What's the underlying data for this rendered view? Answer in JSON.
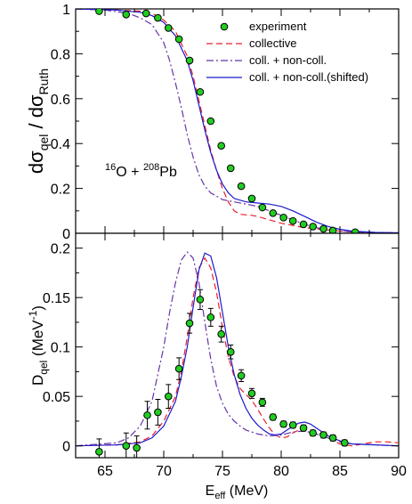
{
  "chart_data": {
    "type": "line",
    "x_axis": {
      "label_main": "E",
      "label_sub": "eff",
      "label_rest": " (MeV)",
      "range": [
        62.5,
        90
      ],
      "ticks": [
        65,
        70,
        75,
        80,
        85,
        90
      ],
      "tick_labels": [
        "65",
        "70",
        "75",
        "80",
        "85",
        "90"
      ]
    },
    "legend": {
      "position": "top-right",
      "entries": [
        {
          "label": "experiment",
          "style": "marker",
          "color": "#22cc22"
        },
        {
          "label": "collective",
          "style": "dashed",
          "color": "#e8202a"
        },
        {
          "label": "coll. + non-coll.",
          "style": "dashdot",
          "color": "#6633aa"
        },
        {
          "label": "coll. + non-coll.(shifted)",
          "style": "solid",
          "color": "#1a1acc"
        }
      ]
    },
    "panels": [
      {
        "id": "top",
        "ylabel": {
          "t1": "dσ",
          "s1": "qel",
          "t2": " / dσ",
          "s2": "Ruth"
        },
        "ylim": [
          0,
          1
        ],
        "yticks": [
          0,
          0.2,
          0.4,
          0.6,
          0.8,
          1
        ],
        "ytick_labels": [
          "0",
          "0.2",
          "0.4",
          "0.6",
          "0.8",
          "1"
        ],
        "annotation": {
          "s1": "16",
          "t1": "O + ",
          "s2": "208",
          "t2": "Pb"
        },
        "experiment": {
          "x": [
            64.5,
            66.8,
            68.5,
            69.5,
            70.4,
            71.3,
            72.2,
            73.1,
            74.0,
            74.9,
            75.7,
            76.6,
            77.5,
            78.4,
            79.3,
            80.2,
            81.0,
            81.9,
            82.7,
            83.6,
            84.4,
            86.3
          ],
          "y": [
            0.99,
            0.975,
            0.98,
            0.96,
            0.915,
            0.865,
            0.77,
            0.63,
            0.5,
            0.39,
            0.29,
            0.21,
            0.155,
            0.115,
            0.09,
            0.07,
            0.055,
            0.04,
            0.03,
            0.02,
            0.012,
            0.005
          ]
        },
        "series": [
          {
            "name": "collective",
            "x": [
              62.5,
              66,
              68,
              69,
              70,
              71,
              72,
              72.5,
              73,
              73.5,
              74,
              74.5,
              75,
              75.5,
              76,
              76.5,
              77,
              77.5,
              78,
              79,
              80,
              81,
              82,
              83,
              84,
              85,
              86,
              88,
              90
            ],
            "y": [
              1,
              0.995,
              0.99,
              0.98,
              0.95,
              0.9,
              0.79,
              0.7,
              0.59,
              0.48,
              0.37,
              0.28,
              0.2,
              0.14,
              0.1,
              0.085,
              0.082,
              0.08,
              0.075,
              0.06,
              0.045,
              0.035,
              0.025,
              0.02,
              0.015,
              0.01,
              0.006,
              0.003,
              0.002
            ]
          },
          {
            "name": "coll. + non-coll.",
            "x": [
              62.5,
              65,
              67,
              68,
              69,
              70,
              70.5,
              71,
              71.5,
              72,
              72.5,
              73,
              73.5,
              74,
              75,
              76,
              77,
              78,
              79,
              80,
              81,
              82,
              83,
              84,
              85,
              86,
              88,
              90
            ],
            "y": [
              1,
              0.995,
              0.98,
              0.96,
              0.93,
              0.85,
              0.77,
              0.67,
              0.56,
              0.44,
              0.34,
              0.26,
              0.21,
              0.18,
              0.15,
              0.14,
              0.13,
              0.12,
              0.1,
              0.08,
              0.06,
              0.04,
              0.025,
              0.015,
              0.01,
              0.006,
              0.003,
              0.002
            ]
          },
          {
            "name": "coll. + non-coll.(shifted)",
            "x": [
              62.5,
              66,
              68,
              69,
              70,
              71,
              72,
              72.5,
              73,
              73.5,
              74,
              74.5,
              75,
              75.5,
              76,
              77,
              78,
              79,
              80,
              81,
              82,
              83,
              84,
              85,
              86,
              88,
              90
            ],
            "y": [
              1,
              0.995,
              0.985,
              0.97,
              0.94,
              0.88,
              0.77,
              0.68,
              0.57,
              0.46,
              0.36,
              0.28,
              0.22,
              0.18,
              0.155,
              0.14,
              0.135,
              0.13,
              0.12,
              0.1,
              0.075,
              0.05,
              0.03,
              0.018,
              0.01,
              0.004,
              0.002
            ]
          }
        ]
      },
      {
        "id": "bottom",
        "ylabel": {
          "t1": "D",
          "s1": "qel",
          "t2": " (MeV",
          "sup": "-1",
          "t3": ")"
        },
        "ylim": [
          -0.012,
          0.215
        ],
        "yticks": [
          0,
          0.05,
          0.1,
          0.15,
          0.2
        ],
        "ytick_labels": [
          "0",
          "0.05",
          "0.1",
          "0.15",
          "0.2"
        ],
        "experiment": {
          "x": [
            64.5,
            66.8,
            67.7,
            68.6,
            69.5,
            70.4,
            71.3,
            72.2,
            73.1,
            74.0,
            74.9,
            75.7,
            76.6,
            77.5,
            78.4,
            79.3,
            80.2,
            81.0,
            81.9,
            82.7,
            83.6,
            84.4,
            85.4
          ],
          "y": [
            -0.006,
            0.0,
            -0.002,
            0.031,
            0.034,
            0.05,
            0.078,
            0.124,
            0.148,
            0.13,
            0.113,
            0.095,
            0.071,
            0.053,
            0.044,
            0.029,
            0.022,
            0.021,
            0.018,
            0.013,
            0.011,
            0.008,
            0.003
          ],
          "err": [
            0.013,
            0.013,
            0.012,
            0.014,
            0.013,
            0.012,
            0.011,
            0.01,
            0.01,
            0.009,
            0.008,
            0.007,
            0.006,
            0.005,
            0.004,
            0.003,
            0.003,
            0.003,
            0.003,
            0.003,
            0.003,
            0.003,
            0.003
          ]
        },
        "series": [
          {
            "name": "collective",
            "x": [
              62.5,
              66,
              68,
              69,
              70,
              71,
              71.5,
              72,
              72.5,
              73,
              73.5,
              74,
              74.5,
              75,
              75.5,
              76,
              76.5,
              77,
              77.5,
              78,
              78.5,
              79,
              79.5,
              80,
              80.5,
              81,
              81.5,
              82,
              83,
              84,
              85,
              86,
              87,
              88,
              89,
              90
            ],
            "y": [
              0,
              0.001,
              0.004,
              0.01,
              0.025,
              0.05,
              0.075,
              0.11,
              0.15,
              0.18,
              0.19,
              0.18,
              0.155,
              0.12,
              0.09,
              0.07,
              0.058,
              0.052,
              0.046,
              0.037,
              0.027,
              0.018,
              0.011,
              0.008,
              0.009,
              0.013,
              0.016,
              0.018,
              0.014,
              0.008,
              0.002,
              0.0,
              0.002,
              0.004,
              0.004,
              0.003
            ]
          },
          {
            "name": "coll. + non-coll.",
            "x": [
              62.5,
              66,
              67,
              68,
              69,
              70,
              70.5,
              71,
              71.5,
              72,
              72.5,
              73,
              73.5,
              74,
              74.5,
              75,
              75.5,
              76,
              76.5,
              77,
              78,
              79,
              80,
              81,
              82,
              83,
              84,
              85,
              86,
              88,
              90
            ],
            "y": [
              0,
              0.003,
              0.008,
              0.02,
              0.045,
              0.1,
              0.135,
              0.165,
              0.188,
              0.196,
              0.19,
              0.165,
              0.125,
              0.088,
              0.06,
              0.043,
              0.032,
              0.025,
              0.02,
              0.016,
              0.012,
              0.01,
              0.011,
              0.014,
              0.015,
              0.012,
              0.008,
              0.004,
              0.002,
              0.001,
              0.0
            ]
          },
          {
            "name": "coll. + non-coll.(shifted)",
            "x": [
              62.5,
              66,
              68,
              69,
              70,
              71,
              71.5,
              72,
              72.5,
              73,
              73.5,
              74,
              74.5,
              75,
              75.5,
              76,
              76.5,
              77,
              77.5,
              78,
              78.5,
              79,
              79.5,
              80,
              80.5,
              81,
              81.5,
              82,
              82.5,
              83,
              84,
              85,
              86,
              88,
              90
            ],
            "y": [
              0,
              0.001,
              0.003,
              0.008,
              0.02,
              0.045,
              0.07,
              0.1,
              0.14,
              0.178,
              0.195,
              0.192,
              0.17,
              0.135,
              0.1,
              0.072,
              0.052,
              0.038,
              0.028,
              0.021,
              0.016,
              0.012,
              0.011,
              0.012,
              0.016,
              0.02,
              0.023,
              0.024,
              0.022,
              0.018,
              0.01,
              0.005,
              0.002,
              0.001,
              0.0
            ]
          }
        ]
      }
    ]
  }
}
